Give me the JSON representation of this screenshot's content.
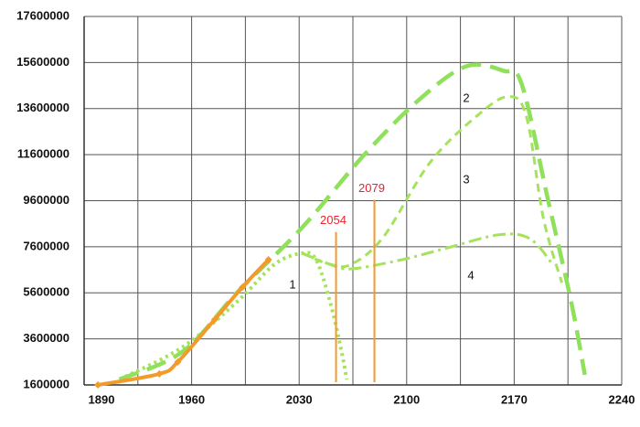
{
  "chart_data": {
    "type": "line",
    "xlim": [
      1890,
      2240
    ],
    "xticks": [
      1890,
      1960,
      2030,
      2100,
      2170,
      2240
    ],
    "ylim": [
      1600000,
      17600000
    ],
    "yticks": [
      1600000,
      3600000,
      5600000,
      7600000,
      9600000,
      11600000,
      13600000,
      15600000,
      17600000
    ],
    "grid": true,
    "historical": {
      "color": "#f39a2a",
      "x": [
        1899,
        1939,
        1951,
        1975,
        1993,
        2010
      ],
      "values": [
        1600000,
        2080000,
        2600000,
        4440000,
        5840000,
        7040000
      ]
    },
    "series": [
      {
        "name": "1",
        "color": "#a6e35c",
        "dash": "dotted",
        "x": [
          1913,
          1954,
          1990,
          2014,
          2032,
          2041,
          2050,
          2057,
          2061
        ],
        "values": [
          1840000,
          3240000,
          5240000,
          6840000,
          7320000,
          7040000,
          5240000,
          3240000,
          1840000
        ]
      },
      {
        "name": "2",
        "color": "#8fe05a",
        "dash": "long",
        "x": [
          1913,
          1954,
          1990,
          2032,
          2073,
          2109,
          2139,
          2163,
          2175,
          2192,
          2207,
          2216
        ],
        "values": [
          1840000,
          3040000,
          5640000,
          8440000,
          11640000,
          14040000,
          15440000,
          15240000,
          14640000,
          9640000,
          5240000,
          2040000
        ]
      },
      {
        "name": "3",
        "color": "#a6e35c",
        "dash": "short",
        "x": [
          2032,
          2050,
          2064,
          2085,
          2115,
          2145,
          2166,
          2178,
          2189,
          2201
        ],
        "values": [
          7320000,
          6840000,
          6840000,
          8040000,
          11240000,
          13240000,
          14120000,
          13240000,
          8840000,
          6040000
        ]
      },
      {
        "name": "4",
        "color": "#a6e35c",
        "dash": "dashdot",
        "x": [
          2032,
          2050,
          2064,
          2097,
          2127,
          2160,
          2180,
          2195
        ],
        "values": [
          7320000,
          6840000,
          6640000,
          7040000,
          7560000,
          8120000,
          7960000,
          6840000
        ]
      }
    ],
    "events": [
      {
        "year": 2054,
        "top": 8240000,
        "color": "#f39a2a",
        "label_color": "#e8242f"
      },
      {
        "year": 2079,
        "top": 9640000,
        "color": "#f39a2a",
        "label_color": "#e8242f"
      }
    ]
  }
}
